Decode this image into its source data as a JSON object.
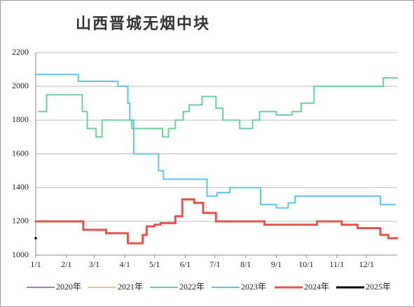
{
  "chart_data": {
    "type": "line",
    "step": "after",
    "title": "山西晋城无烟中块",
    "xlim": [
      1,
      366
    ],
    "ylim": [
      1000,
      2200
    ],
    "xticks": [
      {
        "value": 1,
        "label": "1/1"
      },
      {
        "value": 32,
        "label": "2/1"
      },
      {
        "value": 60,
        "label": "3/1"
      },
      {
        "value": 91,
        "label": "4/1"
      },
      {
        "value": 121,
        "label": "5/1"
      },
      {
        "value": 152,
        "label": "6/1"
      },
      {
        "value": 182,
        "label": "7/1"
      },
      {
        "value": 213,
        "label": "8/1"
      },
      {
        "value": 244,
        "label": "9/1"
      },
      {
        "value": 274,
        "label": "10/1"
      },
      {
        "value": 305,
        "label": "11/1"
      },
      {
        "value": 335,
        "label": "12/1"
      }
    ],
    "yticks": [
      1000,
      1200,
      1400,
      1600,
      1800,
      2000,
      2200
    ],
    "grid": true,
    "legend": "bottom",
    "series": [
      {
        "name": "2020年",
        "color": "#9e7fc4",
        "x": [],
        "values": []
      },
      {
        "name": "2021年",
        "color": "#f5b98a",
        "x": [],
        "values": []
      },
      {
        "name": "2022年",
        "color": "#6ccf9c",
        "x": [
          4,
          12,
          48,
          53,
          62,
          68,
          98,
          129,
          135,
          142,
          150,
          156,
          169,
          183,
          190,
          207,
          220,
          227,
          244,
          260,
          269,
          282,
          352,
          366
        ],
        "values": [
          1850,
          1950,
          1850,
          1750,
          1700,
          1800,
          1750,
          1700,
          1750,
          1800,
          1850,
          1890,
          1940,
          1870,
          1800,
          1750,
          1800,
          1850,
          1830,
          1850,
          1900,
          2000,
          2050,
          2050
        ]
      },
      {
        "name": "2023年",
        "color": "#5cc6e8",
        "x": [
          1,
          44,
          84,
          94,
          96,
          100,
          125,
          130,
          174,
          184,
          197,
          228,
          244,
          256,
          263,
          349,
          364
        ],
        "values": [
          2070,
          2030,
          2000,
          1900,
          1800,
          1600,
          1500,
          1450,
          1350,
          1370,
          1400,
          1300,
          1280,
          1310,
          1350,
          1300,
          1300
        ]
      },
      {
        "name": "2024年",
        "color": "#e8524f",
        "x": [
          1,
          49,
          72,
          94,
          109,
          113,
          121,
          127,
          142,
          149,
          161,
          170,
          183,
          232,
          285,
          310,
          326,
          349,
          357,
          366
        ],
        "values": [
          1200,
          1150,
          1130,
          1070,
          1120,
          1170,
          1180,
          1190,
          1230,
          1330,
          1310,
          1250,
          1200,
          1180,
          1200,
          1180,
          1160,
          1120,
          1100,
          1100
        ]
      },
      {
        "name": "2025年",
        "color": "#000000",
        "x": [
          1
        ],
        "values": [
          1100
        ]
      }
    ]
  }
}
